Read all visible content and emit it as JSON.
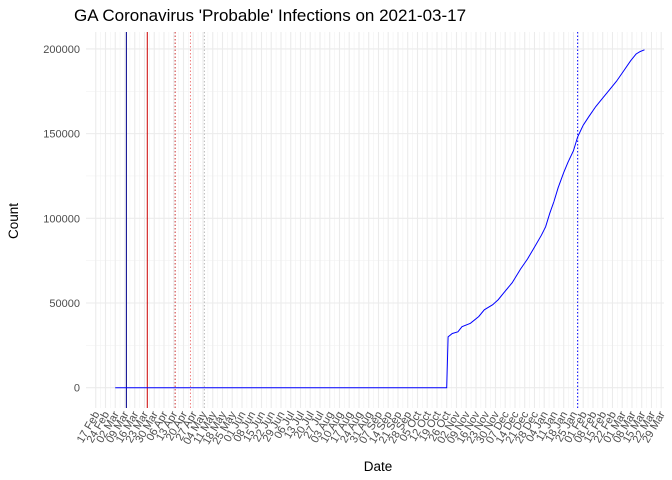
{
  "chart_data": {
    "type": "line",
    "title": "GA Coronavirus 'Probable' Infections on 2021-03-17",
    "xlabel": "Date",
    "ylabel": "Count",
    "x_range": [
      "2020-02-10",
      "2021-03-31"
    ],
    "ylim": [
      -12000,
      210000
    ],
    "y_ticks": [
      0,
      50000,
      100000,
      150000,
      200000
    ],
    "y_tick_labels": [
      "0",
      "50000",
      "100000",
      "150000",
      "200000"
    ],
    "x_ticks": [
      "2020-02-17",
      "2020-02-24",
      "2020-03-02",
      "2020-03-09",
      "2020-03-16",
      "2020-03-23",
      "2020-03-30",
      "2020-04-06",
      "2020-04-13",
      "2020-04-20",
      "2020-04-27",
      "2020-05-04",
      "2020-05-11",
      "2020-05-18",
      "2020-05-25",
      "2020-06-01",
      "2020-06-08",
      "2020-06-15",
      "2020-06-22",
      "2020-06-29",
      "2020-07-06",
      "2020-07-13",
      "2020-07-20",
      "2020-07-27",
      "2020-08-03",
      "2020-08-10",
      "2020-08-17",
      "2020-08-24",
      "2020-08-31",
      "2020-09-07",
      "2020-09-14",
      "2020-09-21",
      "2020-09-28",
      "2020-10-05",
      "2020-10-12",
      "2020-10-19",
      "2020-10-26",
      "2020-11-02",
      "2020-11-09",
      "2020-11-16",
      "2020-11-23",
      "2020-11-30",
      "2020-12-07",
      "2020-12-14",
      "2020-12-21",
      "2020-12-28",
      "2021-01-04",
      "2021-01-11",
      "2021-01-18",
      "2021-01-25",
      "2021-02-01",
      "2021-02-08",
      "2021-02-15",
      "2021-02-22",
      "2021-03-01",
      "2021-03-08",
      "2021-03-15",
      "2021-03-22",
      "2021-03-29"
    ],
    "x_tick_labels": [
      "17 Feb",
      "24 Feb",
      "02 Mar",
      "09 Mar",
      "16 Mar",
      "23 Mar",
      "30 Mar",
      "06 Apr",
      "13 Apr",
      "20 Apr",
      "27 Apr",
      "04 May",
      "11 May",
      "18 May",
      "25 May",
      "01 Jun",
      "08 Jun",
      "15 Jun",
      "22 Jun",
      "29 Jun",
      "06 Jul",
      "13 Jul",
      "20 Jul",
      "27 Jul",
      "03 Aug",
      "10 Aug",
      "17 Aug",
      "24 Aug",
      "31 Aug",
      "07 Sep",
      "14 Sep",
      "21 Sep",
      "28 Sep",
      "05 Oct",
      "12 Oct",
      "19 Oct",
      "26 Oct",
      "02 Nov",
      "09 Nov",
      "16 Nov",
      "23 Nov",
      "30 Nov",
      "07 Dec",
      "14 Dec",
      "21 Dec",
      "28 Dec",
      "04 Jan",
      "11 Jan",
      "18 Jan",
      "25 Jan",
      "01 Feb",
      "08 Feb",
      "15 Feb",
      "22 Feb",
      "01 Mar",
      "08 Mar",
      "15 Mar",
      "22 Mar",
      "29 Mar"
    ],
    "grid": true,
    "series": [
      {
        "color": "#0000ff",
        "points": [
          [
            "2020-03-02",
            0
          ],
          [
            "2020-10-26",
            0
          ],
          [
            "2020-10-27",
            30000
          ],
          [
            "2020-10-30",
            32000
          ],
          [
            "2020-11-03",
            33000
          ],
          [
            "2020-11-06",
            36000
          ],
          [
            "2020-11-12",
            38000
          ],
          [
            "2020-11-18",
            42000
          ],
          [
            "2020-11-22",
            46000
          ],
          [
            "2020-11-28",
            49000
          ],
          [
            "2020-12-02",
            52000
          ],
          [
            "2020-12-06",
            56000
          ],
          [
            "2020-12-12",
            62000
          ],
          [
            "2020-12-18",
            70000
          ],
          [
            "2020-12-23",
            76000
          ],
          [
            "2020-12-28",
            83000
          ],
          [
            "2021-01-02",
            90000
          ],
          [
            "2021-01-05",
            95000
          ],
          [
            "2021-01-08",
            103000
          ],
          [
            "2021-01-11",
            110000
          ],
          [
            "2021-01-14",
            118000
          ],
          [
            "2021-01-18",
            127000
          ],
          [
            "2021-01-21",
            133000
          ],
          [
            "2021-01-25",
            140000
          ],
          [
            "2021-01-28",
            148000
          ],
          [
            "2021-02-01",
            155000
          ],
          [
            "2021-02-05",
            160000
          ],
          [
            "2021-02-10",
            166000
          ],
          [
            "2021-02-15",
            171000
          ],
          [
            "2021-02-20",
            176000
          ],
          [
            "2021-02-25",
            181000
          ],
          [
            "2021-03-02",
            187000
          ],
          [
            "2021-03-07",
            193000
          ],
          [
            "2021-03-11",
            197000
          ],
          [
            "2021-03-14",
            198500
          ],
          [
            "2021-03-17",
            199500
          ]
        ]
      }
    ],
    "vertical_lines": [
      {
        "x": "2020-03-10",
        "color": "#00008b",
        "style": "solid"
      },
      {
        "x": "2020-03-25",
        "color": "#cc0000",
        "style": "solid"
      },
      {
        "x": "2020-04-14",
        "color": "#cc3333",
        "style": "dotted"
      },
      {
        "x": "2020-04-25",
        "color": "#f08080",
        "style": "dotted"
      },
      {
        "x": "2020-05-05",
        "color": "#bbbbbb",
        "style": "dotted"
      },
      {
        "x": "2021-01-28",
        "color": "#0000ff",
        "style": "dotted"
      }
    ]
  }
}
